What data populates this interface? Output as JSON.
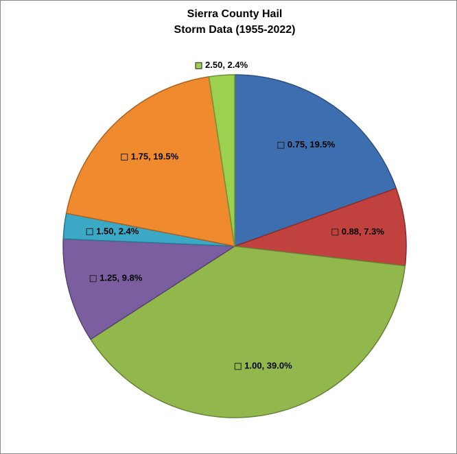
{
  "chart_data": {
    "type": "pie",
    "title": [
      "Sierra County Hail",
      "Storm Data (1955-2022)"
    ],
    "categories": [
      "0.75",
      "0.88",
      "1.00",
      "1.25",
      "1.50",
      "1.75",
      "2.50"
    ],
    "values": [
      19.5,
      7.3,
      39.0,
      9.8,
      2.4,
      19.5,
      2.4
    ],
    "value_labels": [
      "0.75, 19.5%",
      "0.88, 7.3%",
      "1.00, 39.0%",
      "1.25, 9.8%",
      "1.50, 2.4%",
      "1.75, 19.5%",
      "2.50, 2.4%"
    ],
    "colors": [
      "#3d6fb0",
      "#c0413e",
      "#92b84d",
      "#7b5ea0",
      "#3ba8c6",
      "#ef8a2f",
      "#9bd14f"
    ]
  }
}
